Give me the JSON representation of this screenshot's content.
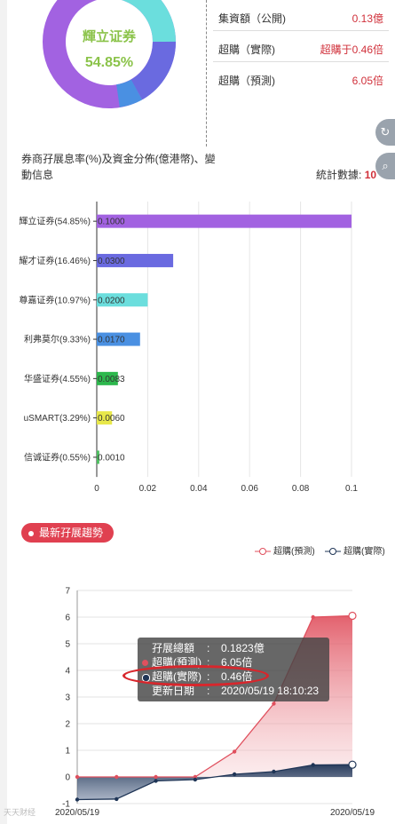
{
  "donut": {
    "center_name": "輝立证券",
    "center_pct": "54.85%",
    "colors": [
      "#a262e1",
      "#6a6ae0",
      "#6bdedd",
      "#4a90e2"
    ]
  },
  "stats": [
    {
      "label": "集資額（公開)",
      "value": "0.13億"
    },
    {
      "label": "超購（實際)",
      "value": "超購于0.46倍"
    },
    {
      "label": "超購（預測)",
      "value": "6.05倍"
    }
  ],
  "side_buttons": {
    "share_icon": "share-icon",
    "search_icon": "search-icon"
  },
  "bar_section": {
    "title": "券商孖展息率(%)及資金分佈(億港幣)、變動信息",
    "count_label": "統計數據:",
    "count_value": "10"
  },
  "badge": {
    "label": "最新孖展趨勢"
  },
  "line_legend": {
    "predicted": "超購(預測)",
    "actual": "超購(實際)"
  },
  "tooltip": {
    "rows": [
      {
        "key": "孖展總額",
        "sep": ":",
        "val": "0.1823億"
      },
      {
        "key": "超購(預測)",
        "sep": ":",
        "val": "6.05倍"
      },
      {
        "key": "超購(實際)",
        "sep": ":",
        "val": "0.46倍"
      },
      {
        "key": "更新日期",
        "sep": ":",
        "val": "2020/05/19 18:10:23"
      }
    ]
  },
  "watermark": "天天财经",
  "chart_data": [
    {
      "type": "bar",
      "orientation": "horizontal",
      "categories": [
        "輝立证券(54.85%)",
        "耀才证券(16.46%)",
        "尊嘉证券(10.97%)",
        "利弗莫尔(9.33%)",
        "华盛证券(4.55%)",
        "uSMART(3.29%)",
        "信诚证券(0.55%)"
      ],
      "values": [
        0.1,
        0.03,
        0.02,
        0.017,
        0.0083,
        0.006,
        0.001
      ],
      "value_labels": [
        "0.1000",
        "0.0300",
        "0.0200",
        "0.0170",
        "0.0083",
        "0.0060",
        "0.0010"
      ],
      "colors": [
        "#a262e1",
        "#6a6ae0",
        "#6bdedd",
        "#4a90e2",
        "#2db84d",
        "#e8e84a",
        "#4cbf5f"
      ],
      "xlim": [
        0,
        0.1
      ],
      "xticks": [
        "0",
        "0.02",
        "0.04",
        "0.06",
        "0.08",
        "0.1"
      ],
      "grid": true
    },
    {
      "type": "area",
      "x": [
        "",
        "",
        "",
        "",
        "",
        "",
        "",
        ""
      ],
      "xtick_labels": [
        "2020/05/19",
        "2020/05/19"
      ],
      "ylim": [
        -1,
        7
      ],
      "yticks": [
        "-1",
        "0",
        "1",
        "2",
        "3",
        "4",
        "5",
        "6",
        "7"
      ],
      "series": [
        {
          "name": "超購(預測)",
          "color": "#e0505e",
          "values": [
            0,
            0,
            0,
            0,
            0.95,
            2.75,
            6.0,
            6.05
          ]
        },
        {
          "name": "超購(實際)",
          "color": "#1f3556",
          "values": [
            -0.85,
            -0.83,
            -0.15,
            -0.1,
            0.1,
            0.2,
            0.45,
            0.46
          ]
        }
      ],
      "grid": true
    }
  ]
}
